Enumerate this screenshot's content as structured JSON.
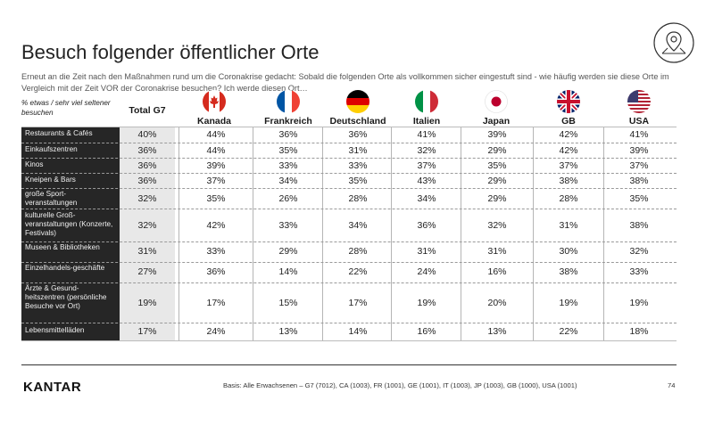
{
  "title": "Besuch folgender öffentlicher Orte",
  "subtitle": "Erneut an die Zeit nach den Maßnahmen rund um die Coronakrise gedacht: Sobald die folgenden Orte als vollkommen sicher eingestuft sind - wie häufig werden sie diese Orte im Vergleich mit der Zeit VOR der Coronakrise besuchen? Ich werde diesen Ort…",
  "header": {
    "row_label": "% etwas / sehr viel seltener besuchen",
    "total": "Total G7",
    "countries": [
      "Kanada",
      "Frankreich",
      "Deutschland",
      "Italien",
      "Japan",
      "GB",
      "USA"
    ]
  },
  "rows": [
    {
      "label": "Restaurants & Cafés",
      "values": [
        "40%",
        "44%",
        "36%",
        "36%",
        "41%",
        "39%",
        "42%",
        "41%"
      ]
    },
    {
      "label": "Einkaufszentren",
      "values": [
        "36%",
        "44%",
        "35%",
        "31%",
        "32%",
        "29%",
        "42%",
        "39%"
      ]
    },
    {
      "label": "Kinos",
      "values": [
        "36%",
        "39%",
        "33%",
        "33%",
        "37%",
        "35%",
        "37%",
        "37%"
      ]
    },
    {
      "label": "Kneipen & Bars",
      "values": [
        "36%",
        "37%",
        "34%",
        "35%",
        "43%",
        "29%",
        "38%",
        "38%"
      ]
    },
    {
      "label": "große Sport-veranstaltungen",
      "values": [
        "32%",
        "35%",
        "26%",
        "28%",
        "34%",
        "29%",
        "28%",
        "35%"
      ]
    },
    {
      "label": "kulturelle Groß-veranstaltungen (Konzerte, Festivals)",
      "values": [
        "32%",
        "42%",
        "33%",
        "34%",
        "36%",
        "32%",
        "31%",
        "38%"
      ]
    },
    {
      "label": "Museen & Bibliotheken",
      "values": [
        "31%",
        "33%",
        "29%",
        "28%",
        "31%",
        "31%",
        "30%",
        "32%"
      ]
    },
    {
      "label": "Einzelhandels-geschäfte",
      "values": [
        "27%",
        "36%",
        "14%",
        "22%",
        "24%",
        "16%",
        "38%",
        "33%"
      ]
    },
    {
      "label": "Ärzte & Gesund-heitszentren (persönliche Besuche vor Ort)",
      "values": [
        "19%",
        "17%",
        "15%",
        "17%",
        "19%",
        "20%",
        "19%",
        "19%"
      ]
    },
    {
      "label": "Lebensmittelläden",
      "values": [
        "17%",
        "24%",
        "13%",
        "14%",
        "16%",
        "13%",
        "22%",
        "18%"
      ]
    }
  ],
  "footer": {
    "logo": "KANTAR",
    "basis": "Basis: Alle Erwachsenen – G7 (7012), CA (1003), FR (1001), GE (1001), IT (1003), JP (1003), GB (1000), USA (1001)",
    "page": "74"
  },
  "icons": {
    "location": "location-pin-icon",
    "flags": [
      "canada-flag-icon",
      "france-flag-icon",
      "germany-flag-icon",
      "italy-flag-icon",
      "japan-flag-icon",
      "uk-flag-icon",
      "usa-flag-icon"
    ]
  },
  "colors": {
    "label_background": "#262626",
    "total_background": "#e8e8e8",
    "canada_red": "#d52b1e",
    "france_blue": "#0055a4",
    "france_red": "#ef4135",
    "germany_gold": "#ffce00",
    "italy_green": "#009246",
    "japan_red": "#bc002d",
    "uk_blue": "#012169",
    "usa_red": "#b22234",
    "usa_blue": "#3c3b6e"
  }
}
